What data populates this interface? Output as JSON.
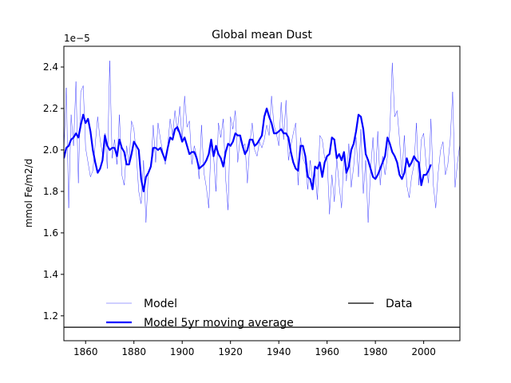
{
  "chart_data": {
    "type": "line",
    "title": "Global  mean Dust",
    "xlabel": "",
    "ylabel": "mmol Fe/m2/d",
    "y_offset_label": "1e−5",
    "xlim": [
      1851,
      2015
    ],
    "ylim": [
      1.08,
      2.5
    ],
    "x_ticks": [
      1860,
      1880,
      1900,
      1920,
      1940,
      1960,
      1980,
      2000
    ],
    "x_tick_labels": [
      "1860",
      "1880",
      "1900",
      "1920",
      "1940",
      "1960",
      "1980",
      "2000"
    ],
    "y_ticks": [
      1.2,
      1.4,
      1.6,
      1.8,
      2.0,
      2.2,
      2.4
    ],
    "y_tick_labels": [
      "1.2",
      "1.4",
      "1.6",
      "1.8",
      "2.0",
      "2.2",
      "2.4"
    ],
    "grid": false,
    "legend_placement": "lower, two columns",
    "series": [
      {
        "name": "Model",
        "color": "#0000ff",
        "style": "thin",
        "x_start": 1851,
        "x_step": 1,
        "values": [
          1.99,
          2.3,
          1.72,
          2.17,
          2.02,
          2.33,
          1.84,
          2.28,
          2.31,
          2.01,
          1.94,
          1.87,
          1.9,
          2.03,
          2.16,
          2.05,
          1.98,
          2.08,
          1.91,
          2.43,
          1.96,
          2.05,
          1.93,
          2.17,
          1.88,
          1.83,
          2.02,
          1.93,
          2.14,
          2.1,
          1.98,
          1.8,
          1.74,
          1.95,
          1.65,
          1.89,
          1.91,
          2.12,
          1.94,
          2.13,
          2.05,
          1.99,
          1.93,
          2.02,
          2.15,
          2.07,
          2.19,
          2.09,
          2.21,
          2.04,
          2.26,
          2.11,
          2.14,
          1.93,
          2.02,
          1.97,
          1.86,
          2.12,
          1.89,
          1.82,
          1.72,
          2.05,
          1.97,
          1.8,
          2.13,
          2.06,
          2.15,
          1.86,
          1.71,
          2.16,
          2.1,
          2.19,
          1.94,
          2.06,
          2.01,
          2.03,
          1.84,
          2.03,
          2.13,
          2.0,
          1.97,
          2.04,
          2.01,
          2.05,
          2.12,
          2.07,
          2.26,
          2.12,
          2.08,
          2.02,
          2.23,
          2.05,
          2.24,
          1.95,
          2.02,
          2.08,
          2.13,
          1.83,
          2.06,
          1.96,
          1.93,
          1.81,
          1.95,
          1.85,
          1.89,
          1.76,
          2.07,
          2.05,
          1.96,
          1.97,
          1.69,
          1.88,
          1.75,
          1.96,
          1.83,
          1.72,
          1.98,
          1.85,
          2.03,
          1.82,
          1.92,
          2.06,
          1.87,
          2.1,
          1.79,
          1.95,
          1.65,
          1.9,
          2.06,
          1.86,
          2.09,
          1.83,
          1.97,
          1.88,
          1.97,
          2.1,
          2.42,
          2.16,
          2.19,
          2.05,
          1.88,
          2.07,
          1.83,
          1.77,
          1.87,
          1.93,
          2.13,
          1.83,
          2.05,
          2.08,
          1.93,
          1.84,
          2.15,
          1.83,
          1.72,
          1.89,
          2.0,
          2.04,
          1.88,
          1.93,
          2.05,
          2.28,
          1.82,
          1.94,
          2.03,
          1.95
        ]
      },
      {
        "name": "Model 5yr moving average",
        "color": "#0000ff",
        "style": "thick",
        "x_start": 1851,
        "x_step": 1,
        "values": [
          1.96,
          2.01,
          2.02,
          2.05,
          2.06,
          2.08,
          2.06,
          2.12,
          2.17,
          2.13,
          2.15,
          2.09,
          2.0,
          1.94,
          1.89,
          1.91,
          1.95,
          2.07,
          2.02,
          2.0,
          2.01,
          2.01,
          1.97,
          2.05,
          2.01,
          1.99,
          1.93,
          1.93,
          1.98,
          2.04,
          2.02,
          2.0,
          1.86,
          1.8,
          1.87,
          1.89,
          1.92,
          2.01,
          2.01,
          2.0,
          2.01,
          1.98,
          1.95,
          2.01,
          2.06,
          2.05,
          2.1,
          2.11,
          2.08,
          2.04,
          2.06,
          2.02,
          1.98,
          1.99,
          1.99,
          1.96,
          1.91,
          1.92,
          1.93,
          1.95,
          1.98,
          2.05,
          1.97,
          2.02,
          1.98,
          1.96,
          1.92,
          1.99,
          2.03,
          2.02,
          2.04,
          2.08,
          2.07,
          2.07,
          2.02,
          1.98,
          2.0,
          2.05,
          2.05,
          2.02,
          2.03,
          2.05,
          2.07,
          2.16,
          2.2,
          2.16,
          2.13,
          2.08,
          2.08,
          2.09,
          2.1,
          2.08,
          2.08,
          2.06,
          1.99,
          1.94,
          1.91,
          1.9,
          2.02,
          2.02,
          1.97,
          1.87,
          1.86,
          1.81,
          1.92,
          1.91,
          1.94,
          1.87,
          1.94,
          1.97,
          1.98,
          2.06,
          2.05,
          1.96,
          1.98,
          1.95,
          1.99,
          1.89,
          1.92,
          2.0,
          2.03,
          2.09,
          2.17,
          2.16,
          2.1,
          1.98,
          1.95,
          1.91,
          1.87,
          1.86,
          1.88,
          1.91,
          1.94,
          1.97,
          2.06,
          2.03,
          1.99,
          1.97,
          1.94,
          1.88,
          1.86,
          1.89,
          1.96,
          1.92,
          1.94,
          1.97,
          1.95,
          1.94,
          1.83,
          1.88,
          1.88,
          1.9,
          1.93
        ]
      }
    ],
    "data_line": {
      "name": "Data",
      "color": "#000000",
      "value": 1.145
    },
    "legend": [
      "Model",
      "Model 5yr moving average",
      "Data"
    ]
  }
}
